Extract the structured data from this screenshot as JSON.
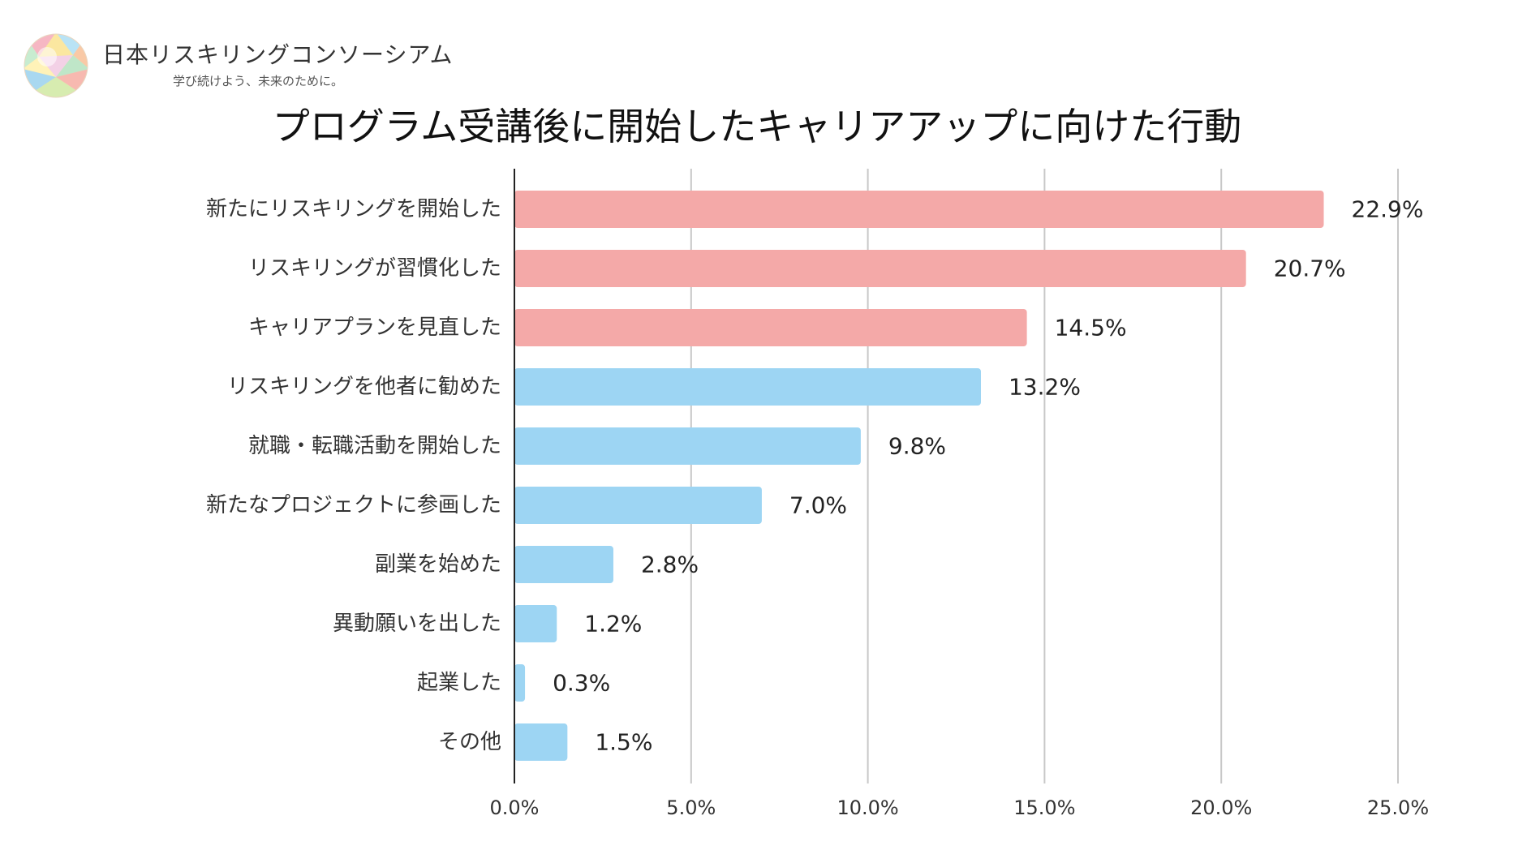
{
  "branding": {
    "org_name": "日本リスキリングコンソーシアム",
    "tagline": "学び続けよう、未来のために。"
  },
  "colors": {
    "highlight": "#f4a9a8",
    "normal": "#9dd5f3",
    "grid": "#c8c8c8",
    "axis": "#222222"
  },
  "chart_data": {
    "type": "bar",
    "orientation": "horizontal",
    "title": "プログラム受講後に開始したキャリアアップに向けた行動",
    "categories": [
      "新たにリスキリングを開始した",
      "リスキリングが習慣化した",
      "キャリアプランを見直した",
      "リスキリングを他者に勧めた",
      "就職・転職活動を開始した",
      "新たなプロジェクトに参画した",
      "副業を始めた",
      "異動願いを出した",
      "起業した",
      "その他"
    ],
    "values": [
      22.9,
      20.7,
      14.5,
      13.2,
      9.8,
      7.0,
      2.8,
      1.2,
      0.3,
      1.5
    ],
    "value_labels": [
      "22.9%",
      "20.7%",
      "14.5%",
      "13.2%",
      "9.8%",
      "7.0%",
      "2.8%",
      "1.2%",
      "0.3%",
      "1.5%"
    ],
    "highlighted": [
      true,
      true,
      true,
      false,
      false,
      false,
      false,
      false,
      false,
      false
    ],
    "xlim": [
      0,
      25
    ],
    "xticks": [
      0,
      5,
      10,
      15,
      20,
      25
    ],
    "xtick_labels": [
      "0.0%",
      "5.0%",
      "10.0%",
      "15.0%",
      "20.0%",
      "25.0%"
    ],
    "xlabel": "",
    "ylabel": "",
    "grid": true
  }
}
